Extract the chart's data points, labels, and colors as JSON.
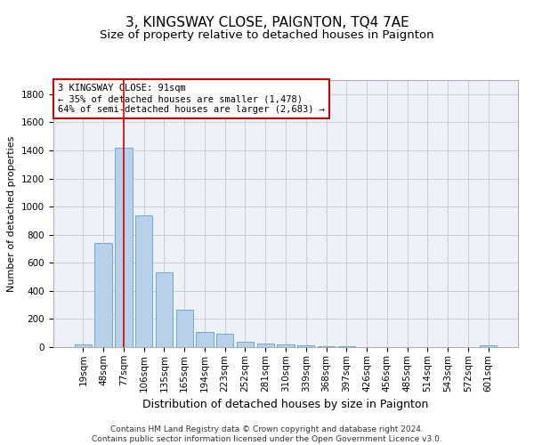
{
  "title": "3, KINGSWAY CLOSE, PAIGNTON, TQ4 7AE",
  "subtitle": "Size of property relative to detached houses in Paignton",
  "xlabel": "Distribution of detached houses by size in Paignton",
  "ylabel": "Number of detached properties",
  "categories": [
    "19sqm",
    "48sqm",
    "77sqm",
    "106sqm",
    "135sqm",
    "165sqm",
    "194sqm",
    "223sqm",
    "252sqm",
    "281sqm",
    "310sqm",
    "339sqm",
    "368sqm",
    "397sqm",
    "426sqm",
    "456sqm",
    "485sqm",
    "514sqm",
    "543sqm",
    "572sqm",
    "601sqm"
  ],
  "values": [
    20,
    740,
    1420,
    940,
    530,
    265,
    105,
    95,
    40,
    28,
    20,
    10,
    8,
    6,
    3,
    2,
    2,
    1,
    1,
    0,
    10
  ],
  "bar_color": "#b8d0e8",
  "bar_edgecolor": "#6aaad4",
  "vline_x_index": 2,
  "vline_color": "#cc0000",
  "annotation_text": "3 KINGSWAY CLOSE: 91sqm\n← 35% of detached houses are smaller (1,478)\n64% of semi-detached houses are larger (2,683) →",
  "annotation_box_facecolor": "#ffffff",
  "annotation_box_edgecolor": "#cc0000",
  "ylim": [
    0,
    1900
  ],
  "yticks": [
    0,
    200,
    400,
    600,
    800,
    1000,
    1200,
    1400,
    1600,
    1800
  ],
  "grid_color": "#cccccc",
  "bg_color": "#eef2f8",
  "footer": "Contains HM Land Registry data © Crown copyright and database right 2024.\nContains public sector information licensed under the Open Government Licence v3.0.",
  "title_fontsize": 11,
  "subtitle_fontsize": 9.5,
  "xlabel_fontsize": 9,
  "ylabel_fontsize": 8,
  "tick_fontsize": 7.5,
  "footer_fontsize": 6.5
}
